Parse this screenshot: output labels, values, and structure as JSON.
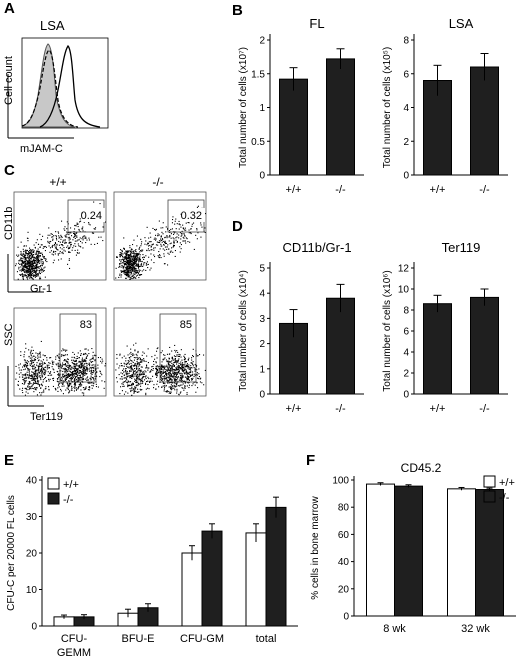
{
  "panels": {
    "A": "A",
    "B": "B",
    "C": "C",
    "D": "D",
    "E": "E",
    "F": "F"
  },
  "panel_a": {
    "title": "LSA",
    "ylabel": "Cell count",
    "xlabel": "mJAM-C"
  },
  "panel_c": {
    "col_wt": "+/+",
    "col_ko": "-/-",
    "top_y": "CD11b",
    "top_x": "Gr-1",
    "bottom_y": "SSC",
    "bottom_x": "Ter119",
    "gates": [
      "0.24",
      "0.32",
      "83",
      "85"
    ]
  },
  "chart_data": [
    {
      "id": "B-FL",
      "type": "bar",
      "title": "FL",
      "ylabel": "Total number of cells (x10⁷)",
      "categories": [
        "+/+",
        "-/-"
      ],
      "values": [
        1.42,
        1.72
      ],
      "errors": [
        0.17,
        0.15
      ],
      "ylim": [
        0,
        2
      ],
      "yticks": [
        "0",
        "0.5",
        "1",
        "1.5",
        "2"
      ],
      "ytick_values": [
        0,
        0.5,
        1,
        1.5,
        2
      ]
    },
    {
      "id": "B-LSA",
      "type": "bar",
      "title": "LSA",
      "ylabel": "Total number of cells (x10⁵)",
      "categories": [
        "+/+",
        "-/-"
      ],
      "values": [
        5.6,
        6.4
      ],
      "errors": [
        0.9,
        0.8
      ],
      "ylim": [
        0,
        8
      ],
      "yticks": [
        "0",
        "2",
        "4",
        "6",
        "8"
      ],
      "ytick_values": [
        0,
        2,
        4,
        6,
        8
      ]
    },
    {
      "id": "D-CD11b",
      "type": "bar",
      "title": "CD11b/Gr-1",
      "ylabel": "Total number of cells (x10⁴)",
      "categories": [
        "+/+",
        "-/-"
      ],
      "values": [
        2.8,
        3.8
      ],
      "errors": [
        0.55,
        0.55
      ],
      "ylim": [
        0,
        5
      ],
      "yticks": [
        "0",
        "1",
        "2",
        "3",
        "4",
        "5"
      ],
      "ytick_values": [
        0,
        1,
        2,
        3,
        4,
        5
      ]
    },
    {
      "id": "D-Ter119",
      "type": "bar",
      "title": "Ter119",
      "ylabel": "Total number of cells (x10⁶)",
      "categories": [
        "+/+",
        "-/-"
      ],
      "values": [
        8.6,
        9.2
      ],
      "errors": [
        0.8,
        0.8
      ],
      "ylim": [
        0,
        12
      ],
      "yticks": [
        "0",
        "2",
        "4",
        "6",
        "8",
        "10",
        "12"
      ],
      "ytick_values": [
        0,
        2,
        4,
        6,
        8,
        10,
        12
      ]
    },
    {
      "id": "E",
      "type": "bar",
      "ylabel": "CFU-C per 20000 FL cells",
      "categories": [
        "CFU-GEMM",
        "BFU-E",
        "CFU-GM",
        "total"
      ],
      "series": [
        {
          "name": "+/+",
          "values": [
            2.5,
            3.5,
            20,
            25.5
          ],
          "errors": [
            0.5,
            1.1,
            2.0,
            2.5
          ]
        },
        {
          "name": "-/-",
          "values": [
            2.5,
            5.0,
            26,
            32.5
          ],
          "errors": [
            0.6,
            1.1,
            2.0,
            2.8
          ]
        }
      ],
      "ylim": [
        0,
        40
      ],
      "yticks": [
        "0",
        "10",
        "20",
        "30",
        "40"
      ],
      "ytick_values": [
        0,
        10,
        20,
        30,
        40
      ],
      "legend": "top-left"
    },
    {
      "id": "F",
      "type": "bar",
      "title": "CD45.2",
      "ylabel": "% cells in bone marrow",
      "categories": [
        "8 wk",
        "32 wk"
      ],
      "series": [
        {
          "name": "+/+",
          "values": [
            97,
            93.5
          ],
          "errors": [
            1.0,
            1.0
          ]
        },
        {
          "name": "-/-",
          "values": [
            95.5,
            93
          ],
          "errors": [
            1.0,
            1.0
          ]
        }
      ],
      "ylim": [
        0,
        100
      ],
      "yticks": [
        "0",
        "20",
        "40",
        "60",
        "80",
        "100"
      ],
      "ytick_values": [
        0,
        20,
        40,
        60,
        80,
        100
      ],
      "legend": "top-right"
    }
  ],
  "colors": {
    "wt": "#ffffff",
    "ko": "#1f1f1f",
    "bar": "#1f1f1f",
    "axis": "#000000"
  }
}
